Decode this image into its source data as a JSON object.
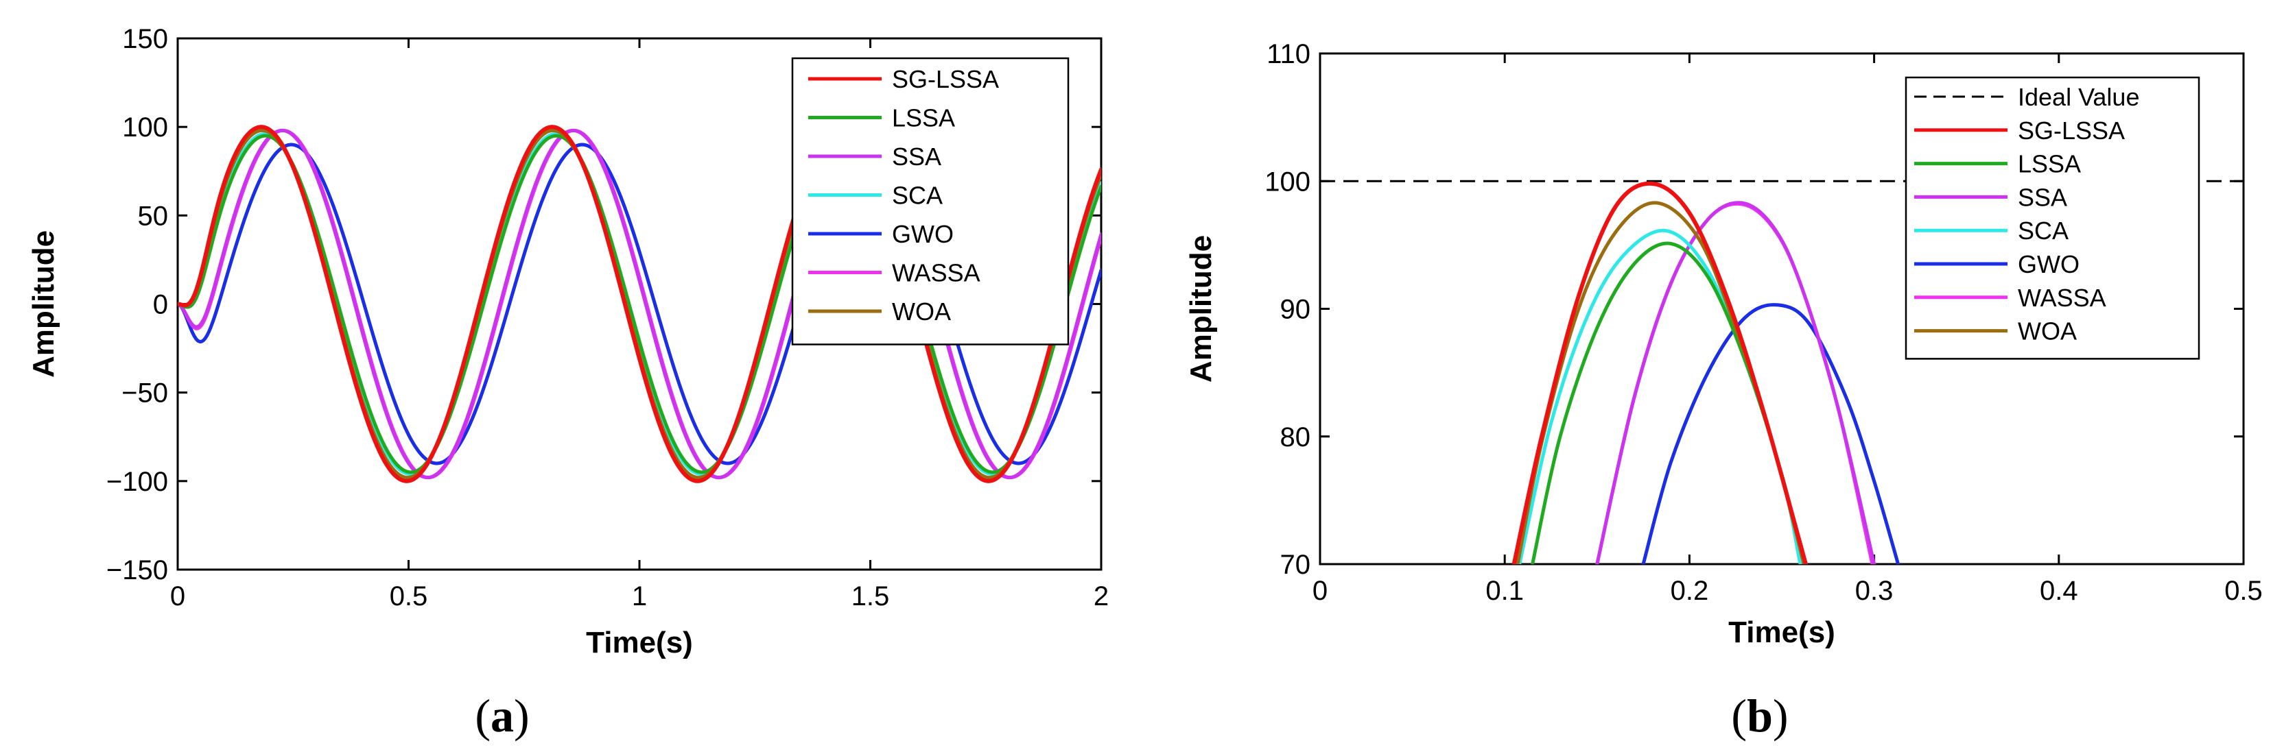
{
  "colors": {
    "SG-LSSA": "#ee1111",
    "LSSA": "#1faa1f",
    "SSA": "#cc33ee",
    "SCA": "#2ee8e8",
    "GWO": "#1a2ee6",
    "WASSA": "#ee33ee",
    "WOA": "#9a6e10",
    "Ideal Value": "#000000"
  },
  "chart_data": [
    {
      "type": "line",
      "caption": {
        "open": "(",
        "letter": "a",
        "close": ")"
      },
      "xlabel": "Time(s)",
      "ylabel": "Amplitude",
      "xlim": [
        0,
        2
      ],
      "ylim": [
        -150,
        150
      ],
      "xticks": [
        0,
        0.5,
        1,
        1.5,
        2
      ],
      "yticks": [
        -150,
        -100,
        -50,
        0,
        50,
        100,
        150
      ],
      "legend": [
        "SG-LSSA",
        "LSSA",
        "SSA",
        "SCA",
        "GWO",
        "WASSA",
        "WOA"
      ],
      "legend_position": "top-right",
      "period_s": 0.63,
      "series": [
        {
          "name": "SG-LSSA",
          "amplitude": 100,
          "peak_time_s": 0.181
        },
        {
          "name": "LSSA",
          "amplitude": 95,
          "peak_time_s": 0.19
        },
        {
          "name": "SSA",
          "amplitude": 98,
          "peak_time_s": 0.226
        },
        {
          "name": "SCA",
          "amplitude": 96,
          "peak_time_s": 0.188
        },
        {
          "name": "GWO",
          "amplitude": 90,
          "peak_time_s": 0.246
        },
        {
          "name": "WASSA",
          "amplitude": 98,
          "peak_time_s": 0.228
        },
        {
          "name": "WOA",
          "amplitude": 98,
          "peak_time_s": 0.183
        }
      ]
    },
    {
      "type": "line",
      "caption": {
        "open": "(",
        "letter": "b",
        "close": ")"
      },
      "xlabel": "Time(s)",
      "ylabel": "Amplitude",
      "xlim": [
        0,
        0.5
      ],
      "ylim": [
        70,
        110
      ],
      "xticks": [
        0,
        0.1,
        0.2,
        0.3,
        0.4,
        0.5
      ],
      "yticks": [
        70,
        80,
        90,
        100,
        110
      ],
      "legend": [
        "Ideal Value",
        "SG-LSSA",
        "LSSA",
        "SSA",
        "SCA",
        "GWO",
        "WASSA",
        "WOA"
      ],
      "legend_position": "top-right",
      "ideal_value": 100,
      "series": [
        {
          "name": "SG-LSSA",
          "points": [
            [
              0.105,
              70
            ],
            [
              0.12,
              80
            ],
            [
              0.14,
              91
            ],
            [
              0.16,
              98
            ],
            [
              0.18,
              99.8
            ],
            [
              0.2,
              97.5
            ],
            [
              0.22,
              91
            ],
            [
              0.24,
              82
            ],
            [
              0.263,
              70
            ]
          ]
        },
        {
          "name": "LSSA",
          "points": [
            [
              0.115,
              70
            ],
            [
              0.13,
              80
            ],
            [
              0.15,
              88.5
            ],
            [
              0.17,
              93.5
            ],
            [
              0.19,
              95.1
            ],
            [
              0.21,
              92.5
            ],
            [
              0.23,
              86
            ],
            [
              0.25,
              77
            ],
            [
              0.262,
              70
            ]
          ]
        },
        {
          "name": "SSA",
          "points": [
            [
              0.15,
              70
            ],
            [
              0.17,
              83
            ],
            [
              0.19,
              92
            ],
            [
              0.21,
              97
            ],
            [
              0.228,
              98.3
            ],
            [
              0.245,
              96.5
            ],
            [
              0.26,
              92
            ],
            [
              0.28,
              82.5
            ],
            [
              0.3,
              70
            ]
          ]
        },
        {
          "name": "SCA",
          "points": [
            [
              0.108,
              70
            ],
            [
              0.125,
              81
            ],
            [
              0.145,
              89.5
            ],
            [
              0.165,
              94.3
            ],
            [
              0.188,
              96.1
            ],
            [
              0.21,
              93
            ],
            [
              0.23,
              86
            ],
            [
              0.25,
              77
            ],
            [
              0.26,
              70
            ]
          ]
        },
        {
          "name": "GWO",
          "points": [
            [
              0.175,
              70
            ],
            [
              0.19,
              78
            ],
            [
              0.21,
              85
            ],
            [
              0.23,
              89.3
            ],
            [
              0.248,
              90.3
            ],
            [
              0.265,
              88.8
            ],
            [
              0.285,
              83
            ],
            [
              0.3,
              76.5
            ],
            [
              0.313,
              70
            ]
          ]
        },
        {
          "name": "WASSA",
          "points": [
            [
              0.15,
              70
            ],
            [
              0.17,
              83
            ],
            [
              0.19,
              92
            ],
            [
              0.21,
              97
            ],
            [
              0.228,
              98.2
            ],
            [
              0.245,
              96.4
            ],
            [
              0.26,
              92
            ],
            [
              0.28,
              82.5
            ],
            [
              0.299,
              70
            ]
          ]
        },
        {
          "name": "WOA",
          "points": [
            [
              0.107,
              70
            ],
            [
              0.12,
              79.5
            ],
            [
              0.14,
              90
            ],
            [
              0.16,
              96
            ],
            [
              0.182,
              98.3
            ],
            [
              0.205,
              95.5
            ],
            [
              0.225,
              88.5
            ],
            [
              0.245,
              79.5
            ],
            [
              0.262,
              70
            ]
          ]
        }
      ]
    }
  ]
}
